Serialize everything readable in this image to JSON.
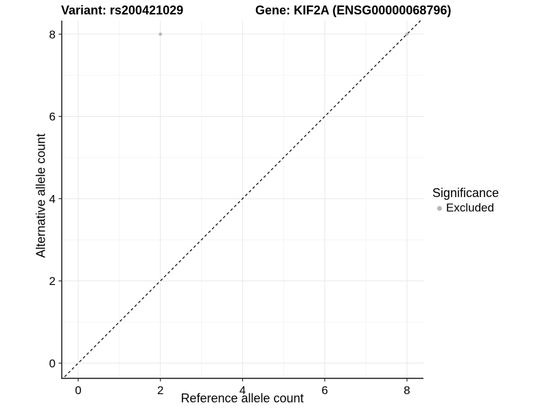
{
  "titles": {
    "left": "Variant: rs200421029",
    "right": "Gene: KIF2A (ENSG00000068796)"
  },
  "legend": {
    "title": "Significance",
    "items": [
      {
        "label": "Excluded",
        "color": "#b7b7b7"
      }
    ]
  },
  "colors": {
    "background": "#ffffff",
    "grid_major": "#e9e9e9",
    "grid_minor": "#f4f4f4",
    "axis_line": "#333333",
    "tick_mark": "#333333",
    "text": "#000000",
    "identity_line": "#000000"
  },
  "chart_data": {
    "type": "scatter",
    "title": "Variant: rs200421029 — Gene: KIF2A (ENSG00000068796)",
    "xlabel": "Reference allele count",
    "ylabel": "Alternative allele count",
    "xlim": [
      -0.4,
      8.4
    ],
    "ylim": [
      -0.37,
      8.33
    ],
    "x_ticks": [
      0,
      2,
      4,
      6,
      8
    ],
    "y_ticks": [
      0,
      2,
      4,
      6,
      8
    ],
    "x_minor_ticks": [
      1,
      3,
      5,
      7
    ],
    "y_minor_ticks": [
      1,
      3,
      5,
      7
    ],
    "grid": true,
    "legend_position": "right",
    "series": [
      {
        "name": "Excluded",
        "color": "#b7b7b7",
        "points": [
          {
            "x": 2,
            "y": 8
          },
          {
            "x": 8,
            "y": 8
          }
        ]
      }
    ],
    "reference_line": {
      "type": "identity",
      "slope": 1,
      "intercept": 0,
      "style": "dashed",
      "color": "#000000"
    }
  }
}
